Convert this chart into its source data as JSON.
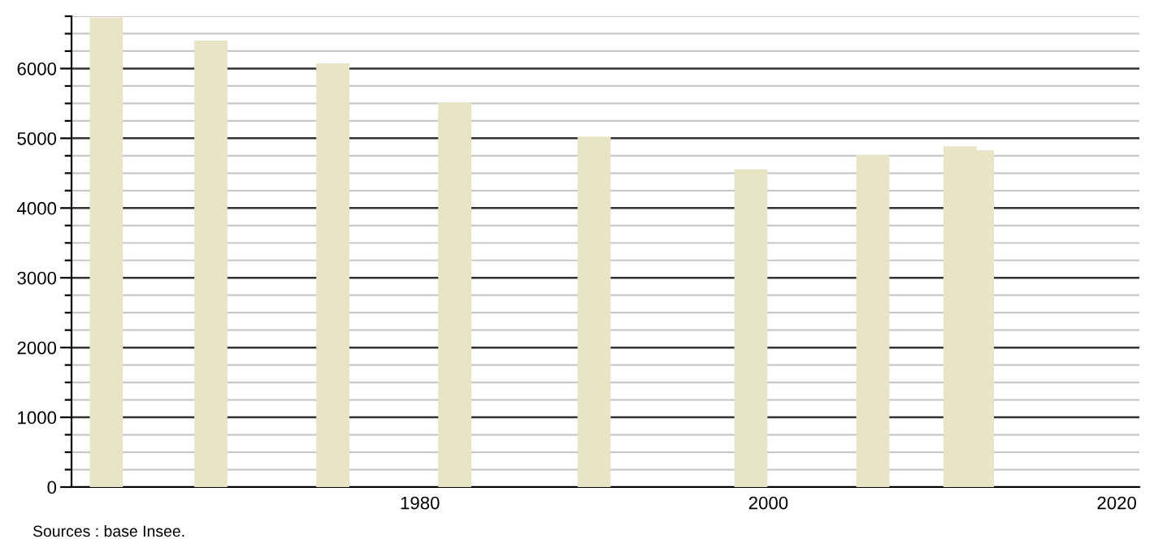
{
  "chart_data": {
    "type": "bar",
    "x": [
      1962,
      1968,
      1975,
      1982,
      1990,
      1999,
      2006,
      2011,
      2012
    ],
    "series": [
      {
        "color": "#e8e4c6",
        "values": [
          6730,
          6400,
          6075,
          5515,
          5025,
          4555,
          4760,
          4885,
          4830
        ]
      }
    ],
    "xlim": [
      1960,
      2021.3
    ],
    "xticks": [
      1980,
      2000,
      2020
    ],
    "ylim": [
      0,
      6750
    ],
    "yticks": [
      0,
      {
        "value": 250,
        "label": null
      },
      {
        "value": 500,
        "label": null
      },
      {
        "value": 750,
        "label": null
      },
      1000,
      {
        "value": 1250,
        "label": null
      },
      {
        "value": 1500,
        "label": null
      },
      {
        "value": 1750,
        "label": null
      },
      2000,
      {
        "value": 2250,
        "label": null
      },
      {
        "value": 2500,
        "label": null
      },
      {
        "value": 2750,
        "label": null
      },
      3000,
      {
        "value": 3250,
        "label": null
      },
      {
        "value": 3500,
        "label": null
      },
      {
        "value": 3750,
        "label": null
      },
      4000,
      {
        "value": 4250,
        "label": null
      },
      {
        "value": 4500,
        "label": null
      },
      {
        "value": 4750,
        "label": null
      },
      5000,
      {
        "value": 5250,
        "label": null
      },
      {
        "value": 5500,
        "label": null
      },
      {
        "value": 5750,
        "label": null
      },
      6000,
      {
        "value": 6250,
        "label": null
      },
      {
        "value": 6500,
        "label": null
      },
      {
        "value": 6750,
        "label": null
      }
    ],
    "grid": "y",
    "annotations": [
      "Sources : base Insee."
    ]
  }
}
